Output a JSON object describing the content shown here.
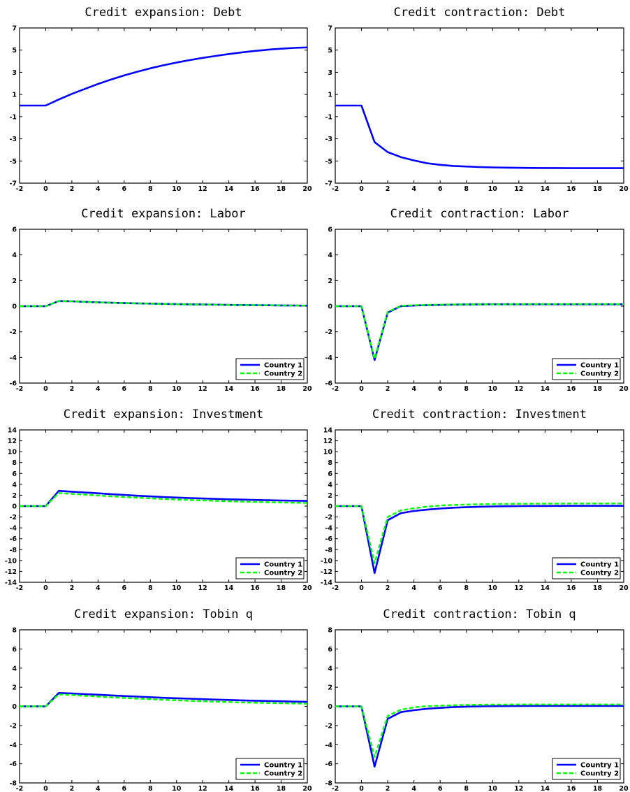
{
  "chart_data": [
    {
      "type": "line",
      "title": "Credit expansion: Debt",
      "x": [
        -2,
        -1,
        0,
        1,
        2,
        3,
        4,
        5,
        6,
        7,
        8,
        9,
        10,
        11,
        12,
        13,
        14,
        15,
        16,
        17,
        18,
        19,
        20
      ],
      "xticks": [
        -2,
        0,
        2,
        4,
        6,
        8,
        10,
        12,
        14,
        16,
        18,
        20
      ],
      "xlim": [
        -2,
        20
      ],
      "ylim": [
        -7,
        7
      ],
      "yticks": [
        -7,
        -5,
        -3,
        -1,
        1,
        3,
        5,
        7
      ],
      "grid": false,
      "legend": null,
      "series": [
        {
          "color": "#0000ff",
          "style": "solid",
          "values": [
            0,
            0,
            0,
            0.55,
            1.05,
            1.5,
            1.95,
            2.35,
            2.72,
            3.05,
            3.36,
            3.63,
            3.88,
            4.1,
            4.3,
            4.48,
            4.65,
            4.8,
            4.93,
            5.04,
            5.13,
            5.2,
            5.25
          ]
        }
      ]
    },
    {
      "type": "line",
      "title": "Credit contraction: Debt",
      "x": [
        -2,
        -1,
        0,
        1,
        2,
        3,
        4,
        5,
        6,
        7,
        8,
        9,
        10,
        11,
        12,
        13,
        14,
        15,
        16,
        17,
        18,
        19,
        20
      ],
      "xticks": [
        -2,
        0,
        2,
        4,
        6,
        8,
        10,
        12,
        14,
        16,
        18,
        20
      ],
      "xlim": [
        -2,
        20
      ],
      "ylim": [
        -7,
        7
      ],
      "yticks": [
        -7,
        -5,
        -3,
        -1,
        1,
        3,
        5,
        7
      ],
      "grid": false,
      "legend": null,
      "series": [
        {
          "color": "#0000ff",
          "style": "solid",
          "values": [
            0,
            0,
            0,
            -3.3,
            -4.2,
            -4.65,
            -4.95,
            -5.2,
            -5.35,
            -5.45,
            -5.5,
            -5.55,
            -5.58,
            -5.6,
            -5.62,
            -5.63,
            -5.64,
            -5.64,
            -5.65,
            -5.65,
            -5.65,
            -5.65,
            -5.65
          ]
        }
      ]
    },
    {
      "type": "line",
      "title": "Credit expansion: Labor",
      "x": [
        -2,
        -1,
        0,
        1,
        2,
        3,
        4,
        5,
        6,
        7,
        8,
        9,
        10,
        11,
        12,
        13,
        14,
        15,
        16,
        17,
        18,
        19,
        20
      ],
      "xticks": [
        -2,
        0,
        2,
        4,
        6,
        8,
        10,
        12,
        14,
        16,
        18,
        20
      ],
      "xlim": [
        -2,
        20
      ],
      "ylim": [
        -6,
        6
      ],
      "yticks": [
        -6,
        -4,
        -2,
        0,
        2,
        4,
        6
      ],
      "grid": false,
      "legend": "bottom-right",
      "series": [
        {
          "name": "Country 1",
          "color": "#0000ff",
          "style": "solid",
          "values": [
            0,
            0,
            0,
            0.4,
            0.38,
            0.34,
            0.3,
            0.27,
            0.24,
            0.22,
            0.2,
            0.18,
            0.16,
            0.14,
            0.13,
            0.12,
            0.1,
            0.09,
            0.08,
            0.07,
            0.06,
            0.05,
            0.04
          ]
        },
        {
          "name": "Country 2",
          "color": "#00ff00",
          "style": "dashed",
          "values": [
            0,
            0,
            0,
            0.4,
            0.38,
            0.34,
            0.3,
            0.27,
            0.24,
            0.22,
            0.2,
            0.18,
            0.16,
            0.14,
            0.13,
            0.12,
            0.1,
            0.09,
            0.08,
            0.07,
            0.06,
            0.05,
            0.04
          ]
        }
      ]
    },
    {
      "type": "line",
      "title": "Credit contraction: Labor",
      "x": [
        -2,
        -1,
        0,
        1,
        2,
        3,
        4,
        5,
        6,
        7,
        8,
        9,
        10,
        11,
        12,
        13,
        14,
        15,
        16,
        17,
        18,
        19,
        20
      ],
      "xticks": [
        -2,
        0,
        2,
        4,
        6,
        8,
        10,
        12,
        14,
        16,
        18,
        20
      ],
      "xlim": [
        -2,
        20
      ],
      "ylim": [
        -6,
        6
      ],
      "yticks": [
        -6,
        -4,
        -2,
        0,
        2,
        4,
        6
      ],
      "grid": false,
      "legend": "bottom-right",
      "series": [
        {
          "name": "Country 1",
          "color": "#0000ff",
          "style": "solid",
          "values": [
            0,
            0,
            0,
            -4.2,
            -0.5,
            0,
            0.05,
            0.08,
            0.1,
            0.12,
            0.13,
            0.14,
            0.15,
            0.15,
            0.15,
            0.15,
            0.15,
            0.15,
            0.15,
            0.15,
            0.15,
            0.15,
            0.15
          ]
        },
        {
          "name": "Country 2",
          "color": "#00ff00",
          "style": "dashed",
          "values": [
            0,
            0,
            0,
            -4.1,
            -0.45,
            0.02,
            0.07,
            0.1,
            0.12,
            0.13,
            0.14,
            0.15,
            0.15,
            0.15,
            0.16,
            0.16,
            0.16,
            0.16,
            0.16,
            0.16,
            0.16,
            0.16,
            0.16
          ]
        }
      ]
    },
    {
      "type": "line",
      "title": "Credit expansion: Investment",
      "x": [
        -2,
        -1,
        0,
        1,
        2,
        3,
        4,
        5,
        6,
        7,
        8,
        9,
        10,
        11,
        12,
        13,
        14,
        15,
        16,
        17,
        18,
        19,
        20
      ],
      "xticks": [
        -2,
        0,
        2,
        4,
        6,
        8,
        10,
        12,
        14,
        16,
        18,
        20
      ],
      "xlim": [
        -2,
        20
      ],
      "ylim": [
        -14,
        14
      ],
      "yticks": [
        -14,
        -12,
        -10,
        -8,
        -6,
        -4,
        -2,
        0,
        2,
        4,
        6,
        8,
        10,
        12,
        14
      ],
      "grid": false,
      "legend": "bottom-right",
      "series": [
        {
          "name": "Country 1",
          "color": "#0000ff",
          "style": "solid",
          "values": [
            0,
            0,
            0,
            2.8,
            2.65,
            2.5,
            2.35,
            2.2,
            2.05,
            1.9,
            1.78,
            1.67,
            1.57,
            1.48,
            1.4,
            1.32,
            1.25,
            1.19,
            1.13,
            1.08,
            1.03,
            0.99,
            0.95
          ]
        },
        {
          "name": "Country 2",
          "color": "#00ff00",
          "style": "dashed",
          "values": [
            0,
            0,
            0,
            2.4,
            2.25,
            2.1,
            1.95,
            1.8,
            1.67,
            1.54,
            1.42,
            1.31,
            1.21,
            1.12,
            1.04,
            0.96,
            0.89,
            0.82,
            0.76,
            0.71,
            0.66,
            0.62,
            0.58
          ]
        }
      ]
    },
    {
      "type": "line",
      "title": "Credit contraction: Investment",
      "x": [
        -2,
        -1,
        0,
        1,
        2,
        3,
        4,
        5,
        6,
        7,
        8,
        9,
        10,
        11,
        12,
        13,
        14,
        15,
        16,
        17,
        18,
        19,
        20
      ],
      "xticks": [
        -2,
        0,
        2,
        4,
        6,
        8,
        10,
        12,
        14,
        16,
        18,
        20
      ],
      "xlim": [
        -2,
        20
      ],
      "ylim": [
        -14,
        14
      ],
      "yticks": [
        -14,
        -12,
        -10,
        -8,
        -6,
        -4,
        -2,
        0,
        2,
        4,
        6,
        8,
        10,
        12,
        14
      ],
      "grid": false,
      "legend": "bottom-right",
      "series": [
        {
          "name": "Country 1",
          "color": "#0000ff",
          "style": "solid",
          "values": [
            0,
            0,
            0,
            -12.3,
            -2.6,
            -1.3,
            -0.9,
            -0.65,
            -0.45,
            -0.3,
            -0.2,
            -0.12,
            -0.07,
            -0.03,
            0,
            0.02,
            0.03,
            0.04,
            0.05,
            0.05,
            0.05,
            0.05,
            0.05
          ]
        },
        {
          "name": "Country 2",
          "color": "#00ff00",
          "style": "dashed",
          "values": [
            0,
            0,
            0,
            -10.5,
            -2,
            -0.8,
            -0.4,
            -0.1,
            0.1,
            0.2,
            0.28,
            0.33,
            0.37,
            0.4,
            0.42,
            0.44,
            0.45,
            0.46,
            0.47,
            0.47,
            0.48,
            0.48,
            0.48
          ]
        }
      ]
    },
    {
      "type": "line",
      "title": "Credit expansion: Tobin q",
      "x": [
        -2,
        -1,
        0,
        1,
        2,
        3,
        4,
        5,
        6,
        7,
        8,
        9,
        10,
        11,
        12,
        13,
        14,
        15,
        16,
        17,
        18,
        19,
        20
      ],
      "xticks": [
        -2,
        0,
        2,
        4,
        6,
        8,
        10,
        12,
        14,
        16,
        18,
        20
      ],
      "xlim": [
        -2,
        20
      ],
      "ylim": [
        -8,
        8
      ],
      "yticks": [
        -8,
        -6,
        -4,
        -2,
        0,
        2,
        4,
        6,
        8
      ],
      "grid": false,
      "legend": "bottom-right",
      "series": [
        {
          "name": "Country 1",
          "color": "#0000ff",
          "style": "solid",
          "values": [
            0,
            0,
            0,
            1.4,
            1.35,
            1.28,
            1.22,
            1.15,
            1.08,
            1.02,
            0.96,
            0.9,
            0.85,
            0.8,
            0.75,
            0.71,
            0.67,
            0.63,
            0.59,
            0.56,
            0.53,
            0.5,
            0.47
          ]
        },
        {
          "name": "Country 2",
          "color": "#00ff00",
          "style": "dashed",
          "values": [
            0,
            0,
            0,
            1.25,
            1.18,
            1.1,
            1.02,
            0.95,
            0.88,
            0.81,
            0.75,
            0.69,
            0.63,
            0.58,
            0.53,
            0.49,
            0.45,
            0.41,
            0.38,
            0.35,
            0.32,
            0.3,
            0.28
          ]
        }
      ]
    },
    {
      "type": "line",
      "title": "Credit contraction: Tobin q",
      "x": [
        -2,
        -1,
        0,
        1,
        2,
        3,
        4,
        5,
        6,
        7,
        8,
        9,
        10,
        11,
        12,
        13,
        14,
        15,
        16,
        17,
        18,
        19,
        20
      ],
      "xticks": [
        -2,
        0,
        2,
        4,
        6,
        8,
        10,
        12,
        14,
        16,
        18,
        20
      ],
      "xlim": [
        -2,
        20
      ],
      "ylim": [
        -8,
        8
      ],
      "yticks": [
        -8,
        -6,
        -4,
        -2,
        0,
        2,
        4,
        6,
        8
      ],
      "grid": false,
      "legend": "bottom-right",
      "series": [
        {
          "name": "Country 1",
          "color": "#0000ff",
          "style": "solid",
          "values": [
            0,
            0,
            0,
            -6.3,
            -1.3,
            -0.6,
            -0.4,
            -0.25,
            -0.15,
            -0.08,
            -0.03,
            0,
            0.02,
            0.03,
            0.04,
            0.05,
            0.05,
            0.05,
            0.05,
            0.05,
            0.05,
            0.05,
            0.05
          ]
        },
        {
          "name": "Country 2",
          "color": "#00ff00",
          "style": "dashed",
          "values": [
            0,
            0,
            0,
            -5.3,
            -1,
            -0.35,
            -0.1,
            0.02,
            0.08,
            0.12,
            0.15,
            0.17,
            0.18,
            0.19,
            0.2,
            0.2,
            0.2,
            0.2,
            0.2,
            0.2,
            0.2,
            0.2,
            0.2
          ]
        }
      ]
    }
  ]
}
